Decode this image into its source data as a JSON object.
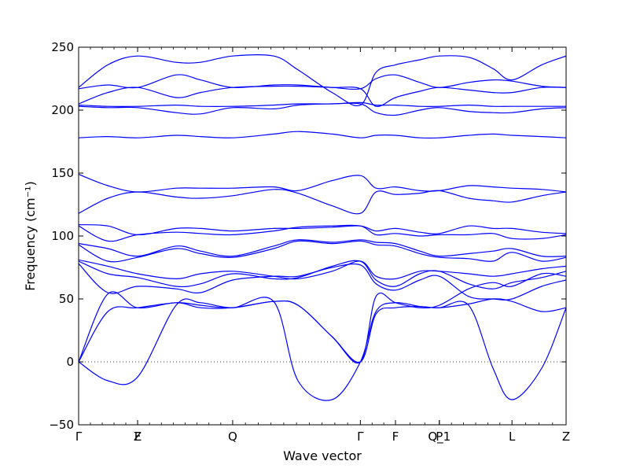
{
  "chart_data": {
    "type": "line",
    "xlabel": "Wave vector",
    "ylabel": "Frequency (cm⁻¹)",
    "ylim": [
      -50,
      250
    ],
    "yticks": [
      -50,
      0,
      50,
      100,
      150,
      200,
      250
    ],
    "grid": false,
    "legend": "none",
    "series_color": "#0000ff",
    "zero_line": {
      "y": 0,
      "style": "dotted",
      "color": "#000000"
    },
    "xlim": [
      0,
      1
    ],
    "high_symmetry_points": [
      {
        "label": "Γ",
        "x": 0.0
      },
      {
        "label": "Z",
        "x": 0.121
      },
      {
        "label": "F",
        "x": 0.121
      },
      {
        "label": "Q",
        "x": 0.316
      },
      {
        "label": "Γ",
        "x": 0.578
      },
      {
        "label": "F",
        "x": 0.65
      },
      {
        "label": "Q_1",
        "x": 0.74
      },
      {
        "label": "P",
        "x": 0.74
      },
      {
        "label": "L",
        "x": 0.889
      },
      {
        "label": "Z",
        "x": 1.0
      }
    ],
    "x": [
      0,
      0.06,
      0.121,
      0.2,
      0.25,
      0.316,
      0.4,
      0.45,
      0.52,
      0.578,
      0.61,
      0.65,
      0.7,
      0.74,
      0.8,
      0.85,
      0.889,
      0.95,
      1.0
    ],
    "series": [
      {
        "values": [
          0,
          -15,
          -12,
          45,
          47,
          43,
          48,
          -15,
          -30,
          0,
          40,
          47,
          44,
          43,
          45,
          -5,
          -30,
          -5,
          43
        ]
      },
      {
        "values": [
          0,
          40,
          43,
          47,
          45,
          43,
          48,
          45,
          20,
          0,
          38,
          43,
          44,
          43,
          46,
          50,
          48,
          40,
          43
        ]
      },
      {
        "values": [
          0,
          54,
          43,
          47,
          43,
          43,
          48,
          45,
          20,
          0,
          52,
          47,
          43,
          45,
          58,
          63,
          60,
          70,
          68
        ]
      },
      {
        "values": [
          78,
          55,
          60,
          58,
          55,
          65,
          68,
          68,
          75,
          77,
          62,
          57,
          65,
          68,
          52,
          50,
          50,
          60,
          65
        ]
      },
      {
        "values": [
          80,
          70,
          67,
          60,
          62,
          70,
          66,
          67,
          76,
          80,
          65,
          60,
          70,
          72,
          62,
          58,
          63,
          67,
          72
        ]
      },
      {
        "values": [
          81,
          76,
          70,
          66,
          70,
          72,
          68,
          66,
          72,
          80,
          68,
          66,
          72,
          72,
          70,
          68,
          70,
          74,
          76
        ]
      },
      {
        "values": [
          93,
          80,
          83,
          90,
          86,
          83,
          90,
          96,
          94,
          96,
          93,
          92,
          86,
          83,
          82,
          80,
          87,
          80,
          83
        ]
      },
      {
        "values": [
          94,
          90,
          84,
          92,
          88,
          84,
          92,
          97,
          95,
          97,
          95,
          94,
          88,
          84,
          86,
          88,
          90,
          84,
          84
        ]
      },
      {
        "values": [
          108,
          96,
          101,
          103,
          102,
          101,
          104,
          107,
          108,
          108,
          101,
          102,
          100,
          101,
          101,
          102,
          98,
          98,
          101
        ]
      },
      {
        "values": [
          109,
          108,
          101,
          106,
          106,
          104,
          106,
          106,
          107,
          108,
          104,
          106,
          103,
          102,
          108,
          106,
          106,
          103,
          102
        ]
      },
      {
        "values": [
          118,
          130,
          135,
          131,
          130,
          132,
          137,
          134,
          124,
          118,
          135,
          133,
          134,
          136,
          130,
          128,
          127,
          132,
          135
        ]
      },
      {
        "values": [
          149,
          140,
          135,
          138,
          138,
          138,
          139,
          136,
          144,
          148,
          138,
          139,
          136,
          136,
          140,
          139,
          138,
          137,
          135
        ]
      },
      {
        "values": [
          178,
          179,
          178,
          180,
          179,
          178,
          181,
          183,
          181,
          178,
          180,
          180,
          178,
          178,
          180,
          181,
          180,
          179,
          178
        ]
      },
      {
        "values": [
          203,
          202,
          202,
          198,
          197,
          202,
          201,
          204,
          205,
          205,
          198,
          196,
          200,
          202,
          199,
          198,
          198,
          201,
          202
        ]
      },
      {
        "values": [
          204,
          203,
          203,
          204,
          203,
          203,
          204,
          205,
          205,
          206,
          204,
          204,
          203,
          203,
          204,
          203,
          203,
          203,
          203
        ]
      },
      {
        "values": [
          205,
          214,
          218,
          210,
          214,
          218,
          219,
          219,
          218,
          217,
          203,
          210,
          215,
          218,
          216,
          214,
          214,
          218,
          218
        ]
      },
      {
        "values": [
          217,
          220,
          218,
          228,
          224,
          218,
          220,
          220,
          218,
          217,
          225,
          228,
          222,
          218,
          222,
          224,
          223,
          219,
          218
        ]
      },
      {
        "values": [
          218,
          236,
          243,
          238,
          238,
          243,
          243,
          232,
          214,
          204,
          230,
          236,
          240,
          243,
          242,
          233,
          224,
          236,
          243
        ]
      }
    ]
  }
}
